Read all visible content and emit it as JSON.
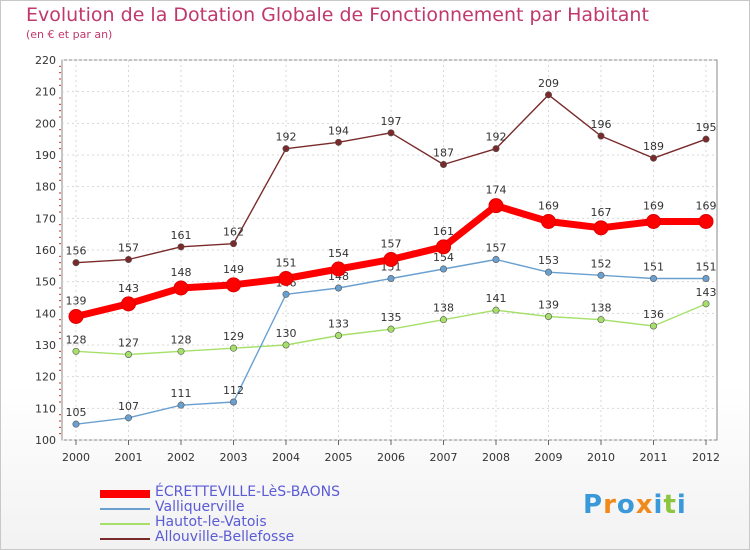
{
  "chart_data": {
    "type": "line",
    "title": "Evolution de la Dotation Globale de Fonctionnement par Habitant",
    "subtitle": "(en € et par an)",
    "categories": [
      "2000",
      "2001",
      "2002",
      "2003",
      "2004",
      "2005",
      "2006",
      "2007",
      "2008",
      "2009",
      "2010",
      "2011",
      "2012"
    ],
    "ylim": [
      100,
      220
    ],
    "yticks": [
      100,
      110,
      120,
      130,
      140,
      150,
      160,
      170,
      180,
      190,
      200,
      210,
      220
    ],
    "grid": true,
    "legend_position": "bottom-left",
    "series": [
      {
        "name": "ÉCRETTEVILLE-LèS-BAONS",
        "color": "#ff0000",
        "values": [
          139,
          143,
          148,
          149,
          151,
          154,
          157,
          161,
          174,
          169,
          167,
          169,
          169
        ]
      },
      {
        "name": "Valliquerville",
        "color": "#6aa0d0",
        "values": [
          105,
          107,
          111,
          112,
          146,
          148,
          151,
          154,
          157,
          153,
          152,
          151,
          151
        ]
      },
      {
        "name": "Hautot-le-Vatois",
        "color": "#a6e06a",
        "values": [
          128,
          127,
          128,
          129,
          130,
          133,
          135,
          138,
          141,
          139,
          138,
          136,
          143
        ]
      },
      {
        "name": "Allouville-Bellefosse",
        "color": "#7a2a2a",
        "values": [
          156,
          157,
          161,
          162,
          192,
          194,
          197,
          187,
          192,
          209,
          196,
          189,
          195
        ]
      }
    ]
  },
  "logo": {
    "letters": [
      "P",
      "r",
      "o",
      "x",
      "i",
      "t",
      "i"
    ],
    "colors": [
      "#3a9ad9",
      "#f08a1c",
      "#3a9ad9",
      "#f08a1c",
      "#3a9ad9",
      "#8cc63f",
      "#3a9ad9"
    ]
  }
}
